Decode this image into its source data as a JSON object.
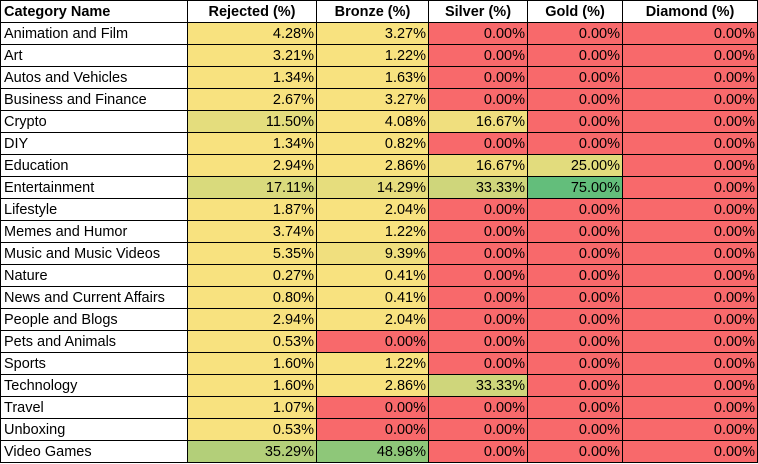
{
  "columns": [
    "Category Name",
    "Rejected (%)",
    "Bronze (%)",
    "Silver (%)",
    "Gold (%)",
    "Diamond (%)"
  ],
  "rows": [
    {
      "name": "Animation and Film",
      "values": [
        "4.28%",
        "3.27%",
        "0.00%",
        "0.00%",
        "0.00%"
      ],
      "colors": [
        "#f8e27f",
        "#f8e27f",
        "#f8696b",
        "#f8696b",
        "#f8696b"
      ]
    },
    {
      "name": "Art",
      "values": [
        "3.21%",
        "1.22%",
        "0.00%",
        "0.00%",
        "0.00%"
      ],
      "colors": [
        "#f8e27f",
        "#f8e27f",
        "#f8696b",
        "#f8696b",
        "#f8696b"
      ]
    },
    {
      "name": "Autos and Vehicles",
      "values": [
        "1.34%",
        "1.63%",
        "0.00%",
        "0.00%",
        "0.00%"
      ],
      "colors": [
        "#f8e27f",
        "#f8e27f",
        "#f8696b",
        "#f8696b",
        "#f8696b"
      ]
    },
    {
      "name": "Business and Finance",
      "values": [
        "2.67%",
        "3.27%",
        "0.00%",
        "0.00%",
        "0.00%"
      ],
      "colors": [
        "#f8e27f",
        "#f8e27f",
        "#f8696b",
        "#f8696b",
        "#f8696b"
      ]
    },
    {
      "name": "Crypto",
      "values": [
        "11.50%",
        "4.08%",
        "16.67%",
        "0.00%",
        "0.00%"
      ],
      "colors": [
        "#e4dd7d",
        "#f8e27f",
        "#f0df7e",
        "#f8696b",
        "#f8696b"
      ]
    },
    {
      "name": "DIY",
      "values": [
        "1.34%",
        "0.82%",
        "0.00%",
        "0.00%",
        "0.00%"
      ],
      "colors": [
        "#f8e27f",
        "#f8e27f",
        "#f8696b",
        "#f8696b",
        "#f8696b"
      ]
    },
    {
      "name": "Education",
      "values": [
        "2.94%",
        "2.86%",
        "16.67%",
        "25.00%",
        "0.00%"
      ],
      "colors": [
        "#f8e27f",
        "#f8e27f",
        "#f0df7e",
        "#e2dc7d",
        "#f8696b"
      ]
    },
    {
      "name": "Entertainment",
      "values": [
        "17.11%",
        "14.29%",
        "33.33%",
        "75.00%",
        "0.00%"
      ],
      "colors": [
        "#d9da7c",
        "#e6dd7d",
        "#cfd67b",
        "#63be7b",
        "#f8696b"
      ]
    },
    {
      "name": "Lifestyle",
      "values": [
        "1.87%",
        "2.04%",
        "0.00%",
        "0.00%",
        "0.00%"
      ],
      "colors": [
        "#f8e27f",
        "#f8e27f",
        "#f8696b",
        "#f8696b",
        "#f8696b"
      ]
    },
    {
      "name": "Memes and Humor",
      "values": [
        "3.74%",
        "1.22%",
        "0.00%",
        "0.00%",
        "0.00%"
      ],
      "colors": [
        "#f8e27f",
        "#f8e27f",
        "#f8696b",
        "#f8696b",
        "#f8696b"
      ]
    },
    {
      "name": "Music and Music Videos",
      "values": [
        "5.35%",
        "9.39%",
        "0.00%",
        "0.00%",
        "0.00%"
      ],
      "colors": [
        "#f8e27f",
        "#f0df7e",
        "#f8696b",
        "#f8696b",
        "#f8696b"
      ]
    },
    {
      "name": "Nature",
      "values": [
        "0.27%",
        "0.41%",
        "0.00%",
        "0.00%",
        "0.00%"
      ],
      "colors": [
        "#f8e27f",
        "#f8e27f",
        "#f8696b",
        "#f8696b",
        "#f8696b"
      ]
    },
    {
      "name": "News and Current Affairs",
      "values": [
        "0.80%",
        "0.41%",
        "0.00%",
        "0.00%",
        "0.00%"
      ],
      "colors": [
        "#f8e27f",
        "#f8e27f",
        "#f8696b",
        "#f8696b",
        "#f8696b"
      ]
    },
    {
      "name": "People and Blogs",
      "values": [
        "2.94%",
        "2.04%",
        "0.00%",
        "0.00%",
        "0.00%"
      ],
      "colors": [
        "#f8e27f",
        "#f8e27f",
        "#f8696b",
        "#f8696b",
        "#f8696b"
      ]
    },
    {
      "name": "Pets and Animals",
      "values": [
        "0.53%",
        "0.00%",
        "0.00%",
        "0.00%",
        "0.00%"
      ],
      "colors": [
        "#f8e27f",
        "#f8696b",
        "#f8696b",
        "#f8696b",
        "#f8696b"
      ]
    },
    {
      "name": "Sports",
      "values": [
        "1.60%",
        "1.22%",
        "0.00%",
        "0.00%",
        "0.00%"
      ],
      "colors": [
        "#f8e27f",
        "#f8e27f",
        "#f8696b",
        "#f8696b",
        "#f8696b"
      ]
    },
    {
      "name": "Technology",
      "values": [
        "1.60%",
        "2.86%",
        "33.33%",
        "0.00%",
        "0.00%"
      ],
      "colors": [
        "#f8e27f",
        "#f8e27f",
        "#cfd67b",
        "#f8696b",
        "#f8696b"
      ]
    },
    {
      "name": "Travel",
      "values": [
        "1.07%",
        "0.00%",
        "0.00%",
        "0.00%",
        "0.00%"
      ],
      "colors": [
        "#f8e27f",
        "#f8696b",
        "#f8696b",
        "#f8696b",
        "#f8696b"
      ]
    },
    {
      "name": "Unboxing",
      "values": [
        "0.53%",
        "0.00%",
        "0.00%",
        "0.00%",
        "0.00%"
      ],
      "colors": [
        "#f8e27f",
        "#f8696b",
        "#f8696b",
        "#f8696b",
        "#f8696b"
      ]
    },
    {
      "name": "Video Games",
      "values": [
        "35.29%",
        "48.98%",
        "0.00%",
        "0.00%",
        "0.00%"
      ],
      "colors": [
        "#b3cf79",
        "#8ec779",
        "#f8696b",
        "#f8696b",
        "#f8696b"
      ]
    }
  ]
}
